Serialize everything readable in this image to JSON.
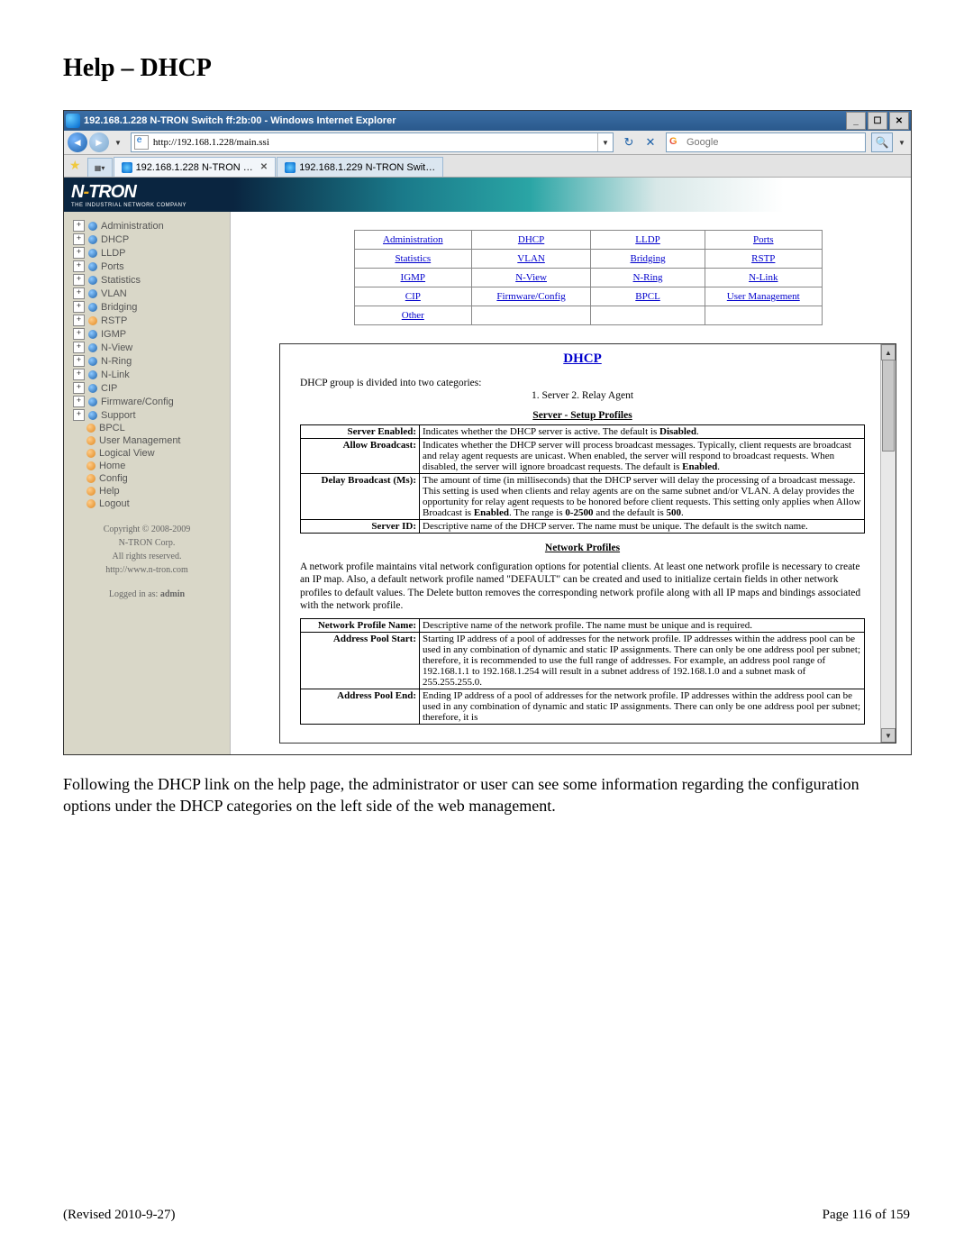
{
  "heading": "Help – DHCP",
  "window_title": "192.168.1.228 N-TRON Switch ff:2b:00 - Windows Internet Explorer",
  "address_bar": "http://192.168.1.228/main.ssi",
  "search_placeholder": "Google",
  "tabs": [
    {
      "label": "192.168.1.228 N-TRON …",
      "active": true
    },
    {
      "label": "192.168.1.229 N-TRON Swit…",
      "active": false
    }
  ],
  "logo_main": "N-TRON",
  "logo_tag": "THE INDUSTRIAL NETWORK COMPANY",
  "sidebar_tree": [
    {
      "exp": true,
      "color": "blue",
      "label": "Administration"
    },
    {
      "exp": true,
      "color": "blue",
      "label": "DHCP"
    },
    {
      "exp": true,
      "color": "blue",
      "label": "LLDP"
    },
    {
      "exp": true,
      "color": "blue",
      "label": "Ports"
    },
    {
      "exp": true,
      "color": "blue",
      "label": "Statistics"
    },
    {
      "exp": true,
      "color": "blue",
      "label": "VLAN"
    },
    {
      "exp": true,
      "color": "blue",
      "label": "Bridging"
    },
    {
      "exp": true,
      "color": "orange",
      "label": "RSTP"
    },
    {
      "exp": true,
      "color": "blue",
      "label": "IGMP"
    },
    {
      "exp": true,
      "color": "blue",
      "label": "N-View"
    },
    {
      "exp": true,
      "color": "blue",
      "label": "N-Ring"
    },
    {
      "exp": true,
      "color": "blue",
      "label": "N-Link"
    },
    {
      "exp": true,
      "color": "blue",
      "label": "CIP"
    },
    {
      "exp": true,
      "color": "blue",
      "label": "Firmware/Config"
    },
    {
      "exp": true,
      "color": "blue",
      "label": "Support"
    }
  ],
  "sidebar_children": [
    {
      "color": "orange",
      "label": "BPCL"
    },
    {
      "color": "orange",
      "label": "User Management"
    },
    {
      "color": "orange",
      "label": "Logical View"
    },
    {
      "color": "orange",
      "label": "Home"
    },
    {
      "color": "orange",
      "label": "Config"
    },
    {
      "color": "orange",
      "label": "Help"
    },
    {
      "color": "orange",
      "label": "Logout"
    }
  ],
  "sidebar_footer": {
    "copyright": "Copyright © 2008-2009",
    "corp": "N-TRON Corp.",
    "rights": "All rights reserved.",
    "url": "http://www.n-tron.com",
    "login_prefix": "Logged in as: ",
    "login_user": "admin"
  },
  "linkgrid": [
    [
      "Administration",
      "DHCP",
      "LLDP",
      "Ports"
    ],
    [
      "Statistics",
      "VLAN",
      "Bridging",
      "RSTP"
    ],
    [
      "IGMP",
      "N-View",
      "N-Ring",
      "N-Link"
    ],
    [
      "CIP",
      "Firmware/Config",
      "BPCL",
      "User Management"
    ],
    [
      "Other",
      "",
      "",
      ""
    ]
  ],
  "help": {
    "title": "DHCP",
    "cat_line": "DHCP group is divided into two categories:",
    "cat_sub": "1. Server    2. Relay Agent",
    "section1": "Server - Setup Profiles",
    "profiles1": [
      {
        "k": "Server Enabled:",
        "v": "Indicates whether the DHCP server is active. The default is Disabled."
      },
      {
        "k": "Allow Broadcast:",
        "v": "Indicates whether the DHCP server will process broadcast messages. Typically, client requests are broadcast and relay agent requests are unicast. When enabled, the server will respond to broadcast requests. When disabled, the server will ignore broadcast requests. The default is Enabled."
      },
      {
        "k": "Delay Broadcast (Ms):",
        "v": "The amount of time (in milliseconds) that the DHCP server will delay the processing of a broadcast message. This setting is used when clients and relay agents are on the same subnet and/or VLAN. A delay provides the opportunity for relay agent requests to be honored before client requests. This setting only applies when Allow Broadcast is Enabled. The range is 0-2500 and the default is 500."
      },
      {
        "k": "Server ID:",
        "v": "Descriptive name of the DHCP server. The name must be unique. The default is the switch name."
      }
    ],
    "section2": "Network Profiles",
    "net_desc": "A network profile maintains vital network configuration options for potential clients. At least one network profile is necessary to create an IP map. Also, a default network profile named \"DEFAULT\" can be created and used to initialize certain fields in other network profiles to default values. The Delete button removes the corresponding network profile along with all IP maps and bindings associated with the network profile.",
    "profiles2": [
      {
        "k": "Network Profile Name:",
        "v": "Descriptive name of the network profile. The name must be unique and is required."
      },
      {
        "k": "Address Pool Start:",
        "v": "Starting IP address of a pool of addresses for the network profile. IP addresses within the address pool can be used in any combination of dynamic and static IP assignments. There can only be one address pool per subnet; therefore, it is recommended to use the full range of addresses. For example, an address pool range of 192.168.1.1 to 192.168.1.254 will result in a subnet address of 192.168.1.0 and a subnet mask of 255.255.255.0."
      },
      {
        "k": "Address Pool End:",
        "v": "Ending IP address of a pool of addresses for the network profile. IP addresses within the address pool can be used in any combination of dynamic and static IP assignments. There can only be one address pool per subnet; therefore, it is"
      }
    ]
  },
  "body_text": "Following the DHCP link on the help page, the administrator or user can see some information regarding the configuration options under the DHCP categories on the left side of the web management.",
  "footer_left": "(Revised 2010-9-27)",
  "footer_right": "Page 116 of 159"
}
